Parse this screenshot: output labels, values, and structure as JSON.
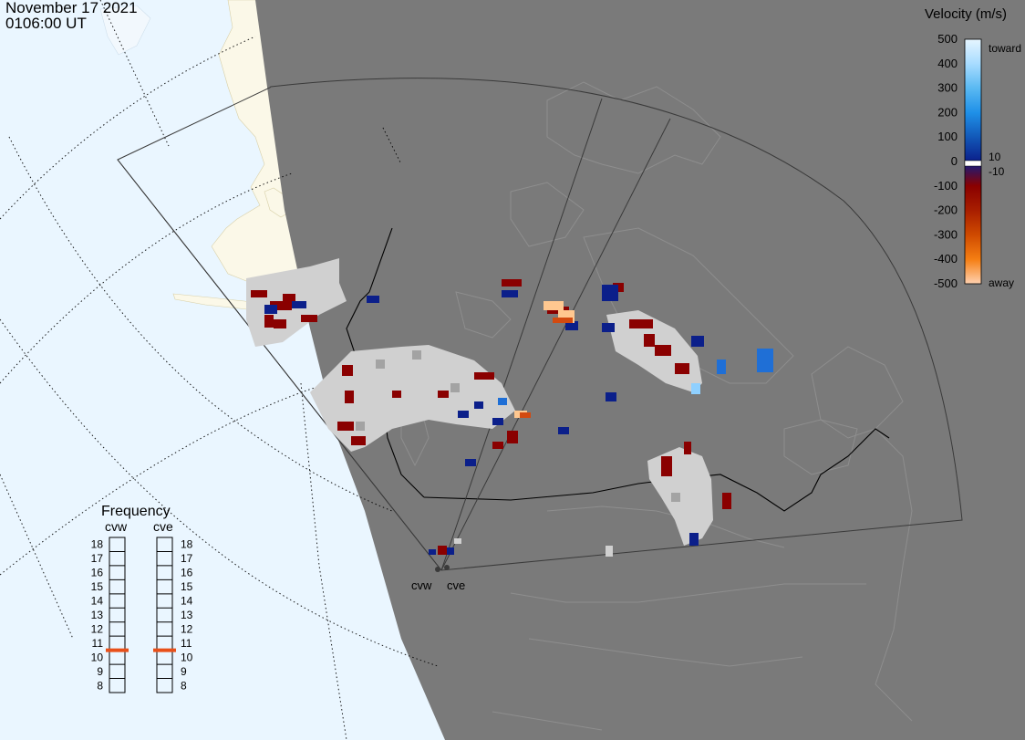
{
  "header": {
    "date": "November 17 2021",
    "time": "0106:00 UT"
  },
  "colors": {
    "ocean_night": "#eaf6ff",
    "land_day": "#fbf8e8",
    "night_shade": "#7a7a7a",
    "low_quality_scatter": "#d0d0d0",
    "ground_scatter": "#a3a3a3"
  },
  "colorbar": {
    "title": "Velocity (m/s)",
    "ticks": [
      "500",
      "400",
      "300",
      "200",
      "100",
      "0",
      "-100",
      "-200",
      "-300",
      "-400",
      "-500"
    ],
    "label_toward": "toward",
    "label_away": "away",
    "label_pos_threshold": "10",
    "label_neg_threshold": "-10",
    "gradient": [
      "#e6f5ff",
      "#a8dcff",
      "#5ab9f2",
      "#1f90e8",
      "#1258b8",
      "#0b1f8a",
      "#8a0000",
      "#a81e00",
      "#cf4a00",
      "#f57e12",
      "#ffd1b0"
    ]
  },
  "frequency_panel": {
    "title": "Frequency",
    "radars": [
      {
        "name": "cvw",
        "selected_mhz": 10.5
      },
      {
        "name": "cve",
        "selected_mhz": 10.5
      }
    ],
    "scale_labels": [
      "18",
      "17",
      "16",
      "15",
      "14",
      "13",
      "12",
      "11",
      "10",
      "9",
      "8"
    ],
    "marker_color": "#e8501a"
  },
  "radar_sites": [
    {
      "name": "cvw"
    },
    {
      "name": "cve"
    }
  ],
  "velocity_scale_colors": {
    "toward_dark": "#0b1f8a",
    "toward_mid": "#1f6fd6",
    "toward_light": "#8fd0ff",
    "away_dark": "#8a0000",
    "away_mid": "#d24a10",
    "away_light": "#ffc890"
  }
}
